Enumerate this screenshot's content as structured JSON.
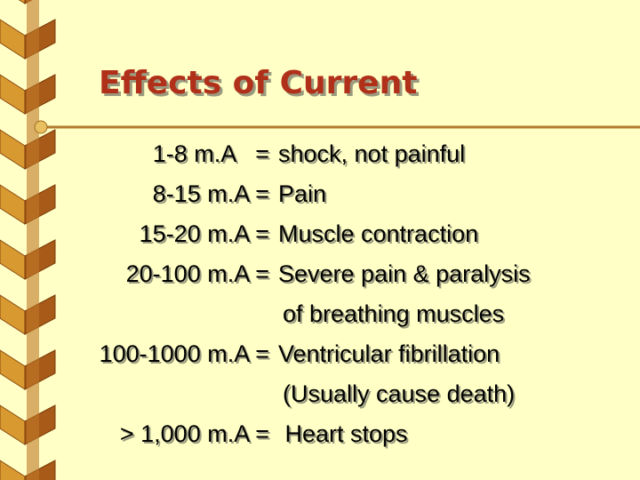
{
  "title": "Effects of Current",
  "rows": [
    {
      "current": "1-8 m.A   =",
      "effect": [
        "shock, not painful"
      ]
    },
    {
      "current": "8-15 m.A =",
      "effect": [
        "Pain"
      ]
    },
    {
      "current": "15-20 m.A =",
      "effect": [
        "Muscle contraction"
      ]
    },
    {
      "current": "20-100 m.A =",
      "effect": [
        "Severe pain & paralysis",
        "of breathing muscles"
      ]
    },
    {
      "current": "100-1000 m.A =",
      "effect": [
        "Ventricular fibrillation",
        "(Usually cause death)"
      ]
    },
    {
      "current": "> 1,000 m.A =",
      "effect": [
        " Heart stops"
      ]
    }
  ]
}
